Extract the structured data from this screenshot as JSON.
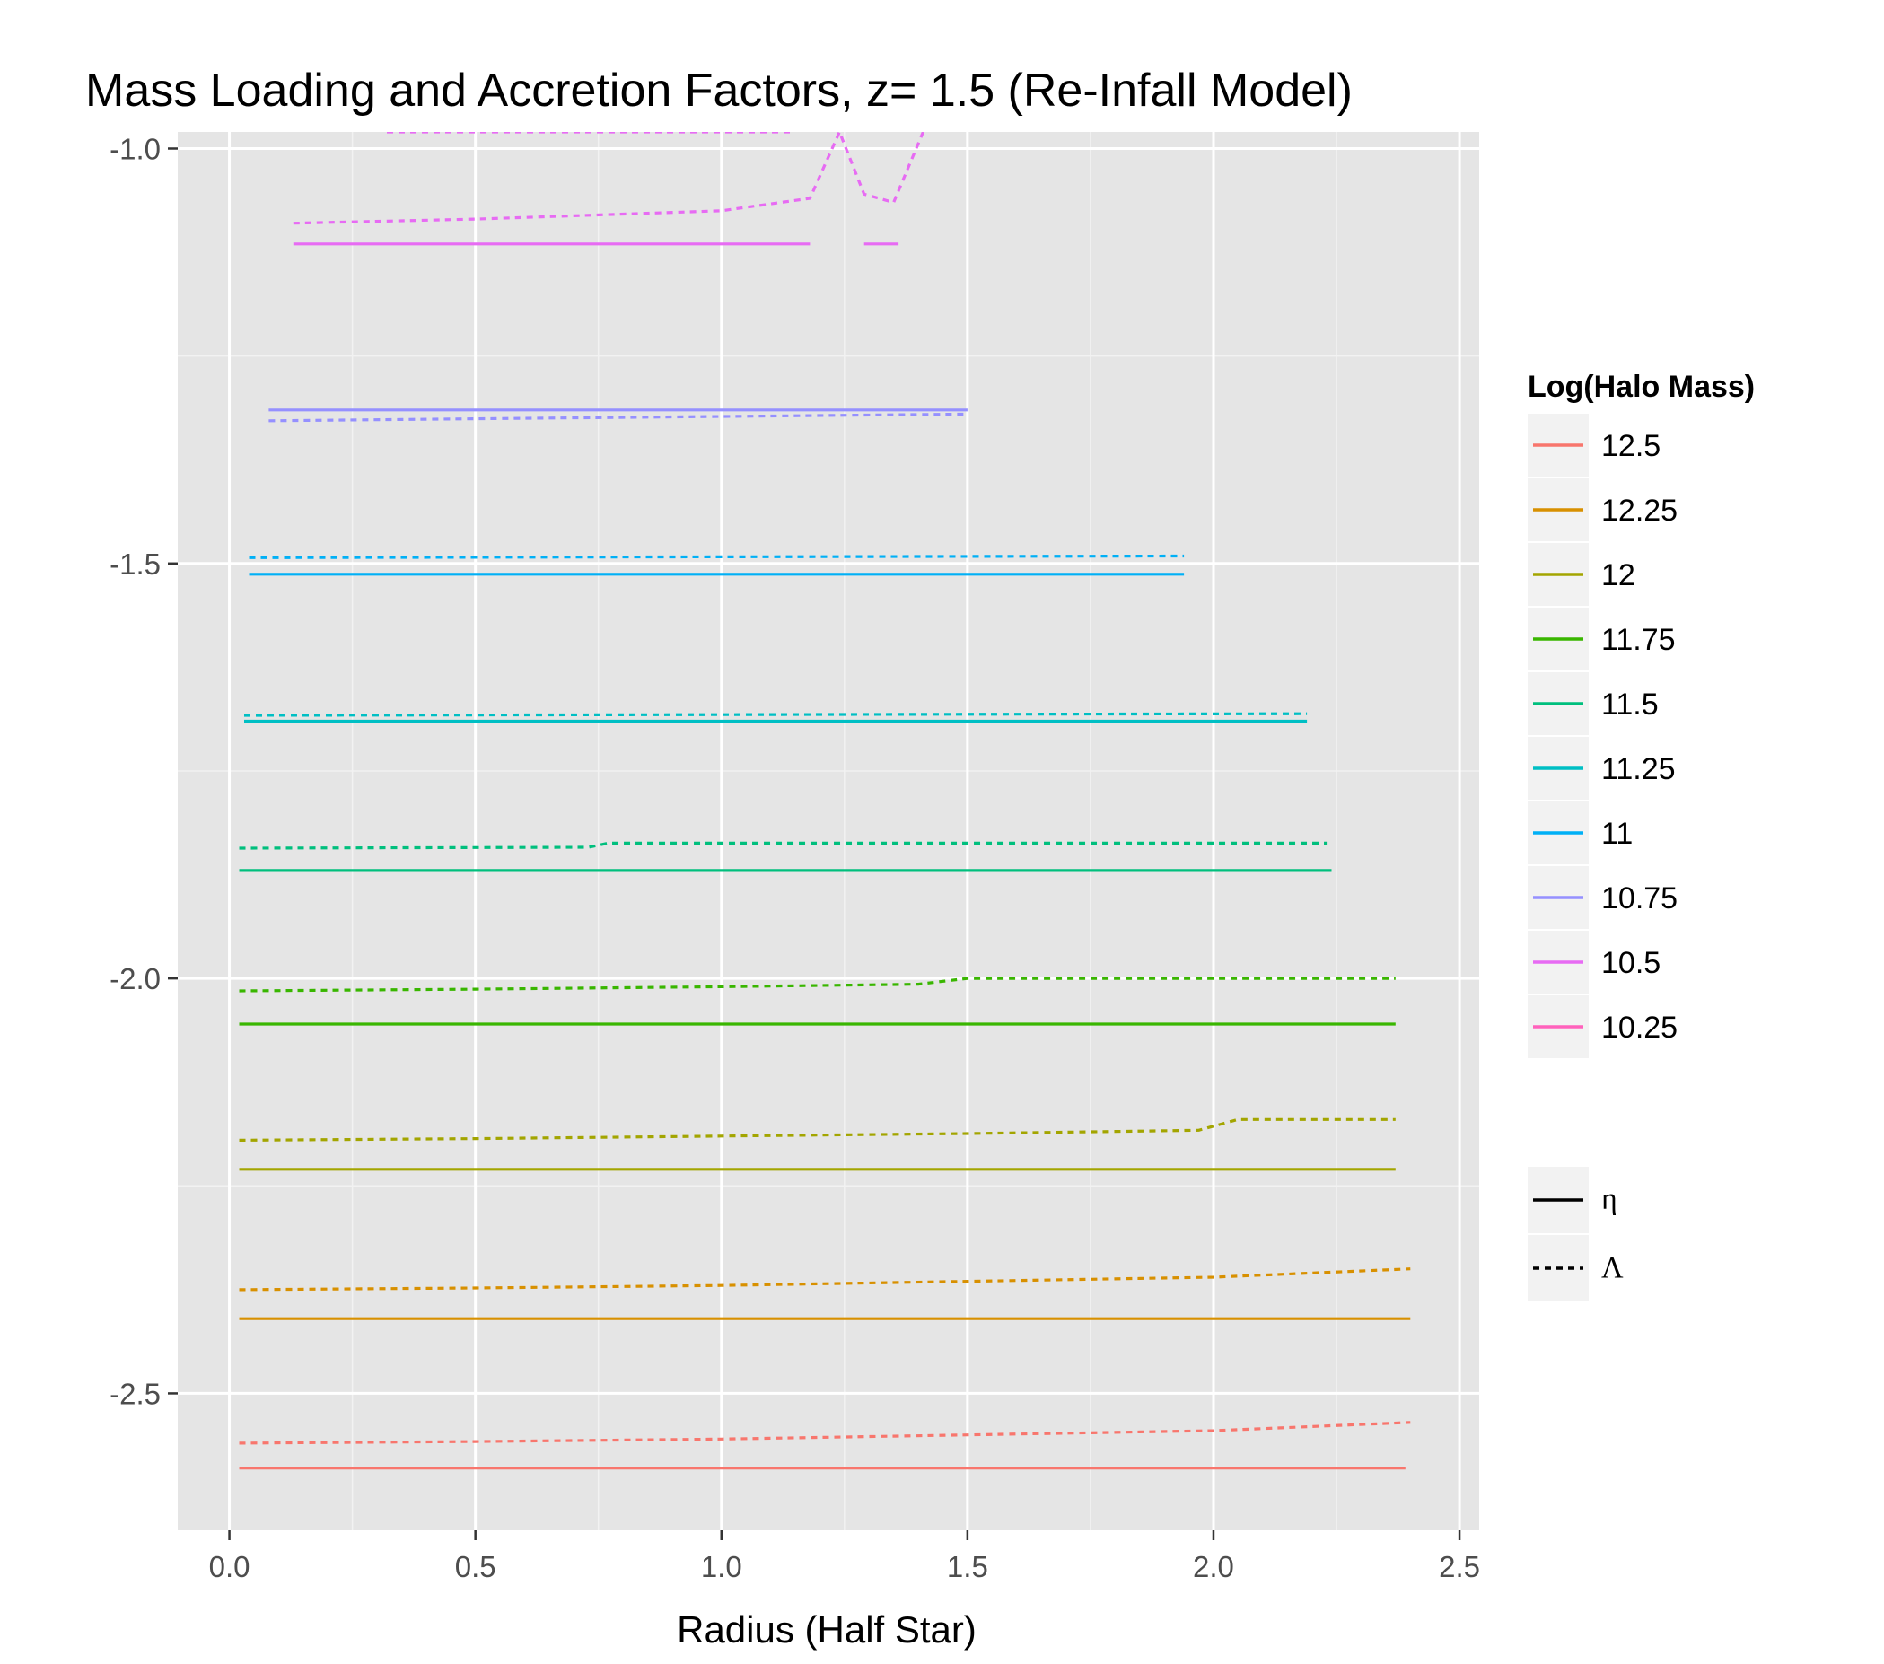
{
  "chart_data": {
    "type": "line",
    "title": "Mass Loading and Accretion Factors, z= 1.5 (Re-Infall Model)",
    "xlabel": "Radius (Half Star)",
    "ylabel": "",
    "xlim": [
      -0.105,
      2.54
    ],
    "ylim": [
      -2.665,
      -0.98
    ],
    "x_ticks": [
      0.0,
      0.5,
      1.0,
      1.5,
      2.0,
      2.5
    ],
    "x_tick_labels": [
      "0.0",
      "0.5",
      "1.0",
      "1.5",
      "2.0",
      "2.5"
    ],
    "y_ticks": [
      -1.0,
      -1.5,
      -2.0,
      -2.5
    ],
    "y_tick_labels": [
      "-1.0",
      "-1.5",
      "-2.0",
      "-2.5"
    ],
    "grid": true,
    "legend_position": "right",
    "color_legend": {
      "title": "Log(Halo Mass)",
      "entries": [
        {
          "label": "12.5",
          "color": "#F8766D"
        },
        {
          "label": "12.25",
          "color": "#D89000"
        },
        {
          "label": "12",
          "color": "#A3A500"
        },
        {
          "label": "11.75",
          "color": "#39B600"
        },
        {
          "label": "11.5",
          "color": "#00BF7D"
        },
        {
          "label": "11.25",
          "color": "#00BFC4"
        },
        {
          "label": "11",
          "color": "#00B0F6"
        },
        {
          "label": "10.75",
          "color": "#9590FF"
        },
        {
          "label": "10.5",
          "color": "#E76BF3"
        },
        {
          "label": "10.25",
          "color": "#FF62BC"
        }
      ]
    },
    "linetype_legend": {
      "entries": [
        {
          "label": "η",
          "dash": "solid"
        },
        {
          "label": "Λ",
          "dash": "dotted"
        }
      ]
    },
    "series": [
      {
        "group": "12.5",
        "linetype": "η",
        "color": "#F8766D",
        "points": [
          [
            0.02,
            -2.59
          ],
          [
            2.39,
            -2.59
          ]
        ]
      },
      {
        "group": "12.5",
        "linetype": "Λ",
        "color": "#F8766D",
        "points": [
          [
            0.02,
            -2.56
          ],
          [
            0.5,
            -2.558
          ],
          [
            1.0,
            -2.555
          ],
          [
            1.5,
            -2.55
          ],
          [
            2.0,
            -2.545
          ],
          [
            2.4,
            -2.535
          ]
        ]
      },
      {
        "group": "12.25",
        "linetype": "η",
        "color": "#D89000",
        "points": [
          [
            0.02,
            -2.41
          ],
          [
            2.4,
            -2.41
          ]
        ]
      },
      {
        "group": "12.25",
        "linetype": "Λ",
        "color": "#D89000",
        "points": [
          [
            0.02,
            -2.375
          ],
          [
            0.5,
            -2.373
          ],
          [
            1.0,
            -2.37
          ],
          [
            1.5,
            -2.365
          ],
          [
            2.0,
            -2.36
          ],
          [
            2.4,
            -2.35
          ]
        ]
      },
      {
        "group": "12",
        "linetype": "η",
        "color": "#A3A500",
        "points": [
          [
            0.02,
            -2.23
          ],
          [
            2.37,
            -2.23
          ]
        ]
      },
      {
        "group": "12",
        "linetype": "Λ",
        "color": "#A3A500",
        "points": [
          [
            0.02,
            -2.195
          ],
          [
            0.5,
            -2.193
          ],
          [
            1.0,
            -2.19
          ],
          [
            1.5,
            -2.187
          ],
          [
            1.97,
            -2.183
          ],
          [
            2.05,
            -2.17
          ],
          [
            2.37,
            -2.17
          ]
        ]
      },
      {
        "group": "11.75",
        "linetype": "η",
        "color": "#39B600",
        "points": [
          [
            0.02,
            -2.055
          ],
          [
            2.37,
            -2.055
          ]
        ]
      },
      {
        "group": "11.75",
        "linetype": "Λ",
        "color": "#39B600",
        "points": [
          [
            0.02,
            -2.015
          ],
          [
            0.5,
            -2.013
          ],
          [
            1.0,
            -2.01
          ],
          [
            1.4,
            -2.007
          ],
          [
            1.5,
            -2.0
          ],
          [
            2.37,
            -2.0
          ]
        ]
      },
      {
        "group": "11.5",
        "linetype": "η",
        "color": "#00BF7D",
        "points": [
          [
            0.02,
            -1.87
          ],
          [
            2.24,
            -1.87
          ]
        ]
      },
      {
        "group": "11.5",
        "linetype": "Λ",
        "color": "#00BF7D",
        "points": [
          [
            0.02,
            -1.843
          ],
          [
            0.73,
            -1.842
          ],
          [
            0.77,
            -1.837
          ],
          [
            2.23,
            -1.837
          ]
        ]
      },
      {
        "group": "11.25",
        "linetype": "η",
        "color": "#00BFC4",
        "points": [
          [
            0.03,
            -1.69
          ],
          [
            2.19,
            -1.69
          ]
        ]
      },
      {
        "group": "11.25",
        "linetype": "Λ",
        "color": "#00BFC4",
        "points": [
          [
            0.03,
            -1.683
          ],
          [
            2.19,
            -1.681
          ]
        ]
      },
      {
        "group": "11",
        "linetype": "η",
        "color": "#00B0F6",
        "points": [
          [
            0.04,
            -1.513
          ],
          [
            1.94,
            -1.513
          ]
        ]
      },
      {
        "group": "11",
        "linetype": "Λ",
        "color": "#00B0F6",
        "points": [
          [
            0.04,
            -1.493
          ],
          [
            1.94,
            -1.491
          ]
        ]
      },
      {
        "group": "10.75",
        "linetype": "η",
        "color": "#9590FF",
        "points": [
          [
            0.08,
            -1.315
          ],
          [
            1.5,
            -1.315
          ]
        ]
      },
      {
        "group": "10.75",
        "linetype": "Λ",
        "color": "#9590FF",
        "points": [
          [
            0.08,
            -1.328
          ],
          [
            1.5,
            -1.32
          ]
        ]
      },
      {
        "group": "10.5",
        "linetype": "η",
        "color": "#E76BF3",
        "points": [
          [
            0.13,
            -1.115
          ],
          [
            1.18,
            -1.115
          ]
        ]
      },
      {
        "group": "10.5",
        "linetype": "η",
        "color": "#E76BF3",
        "points": [
          [
            1.29,
            -1.115
          ],
          [
            1.36,
            -1.115
          ]
        ]
      },
      {
        "group": "10.5",
        "linetype": "Λ",
        "color": "#E76BF3",
        "points": [
          [
            0.13,
            -1.09
          ],
          [
            0.5,
            -1.085
          ],
          [
            1.0,
            -1.075
          ],
          [
            1.18,
            -1.06
          ],
          [
            1.24,
            -0.98
          ],
          [
            1.29,
            -1.055
          ],
          [
            1.35,
            -1.065
          ],
          [
            1.41,
            -0.98
          ]
        ]
      },
      {
        "group": "10.5",
        "linetype": "Λ",
        "color": "#E76BF3",
        "points": [
          [
            0.32,
            -0.98
          ],
          [
            1.15,
            -0.98
          ]
        ]
      }
    ]
  }
}
